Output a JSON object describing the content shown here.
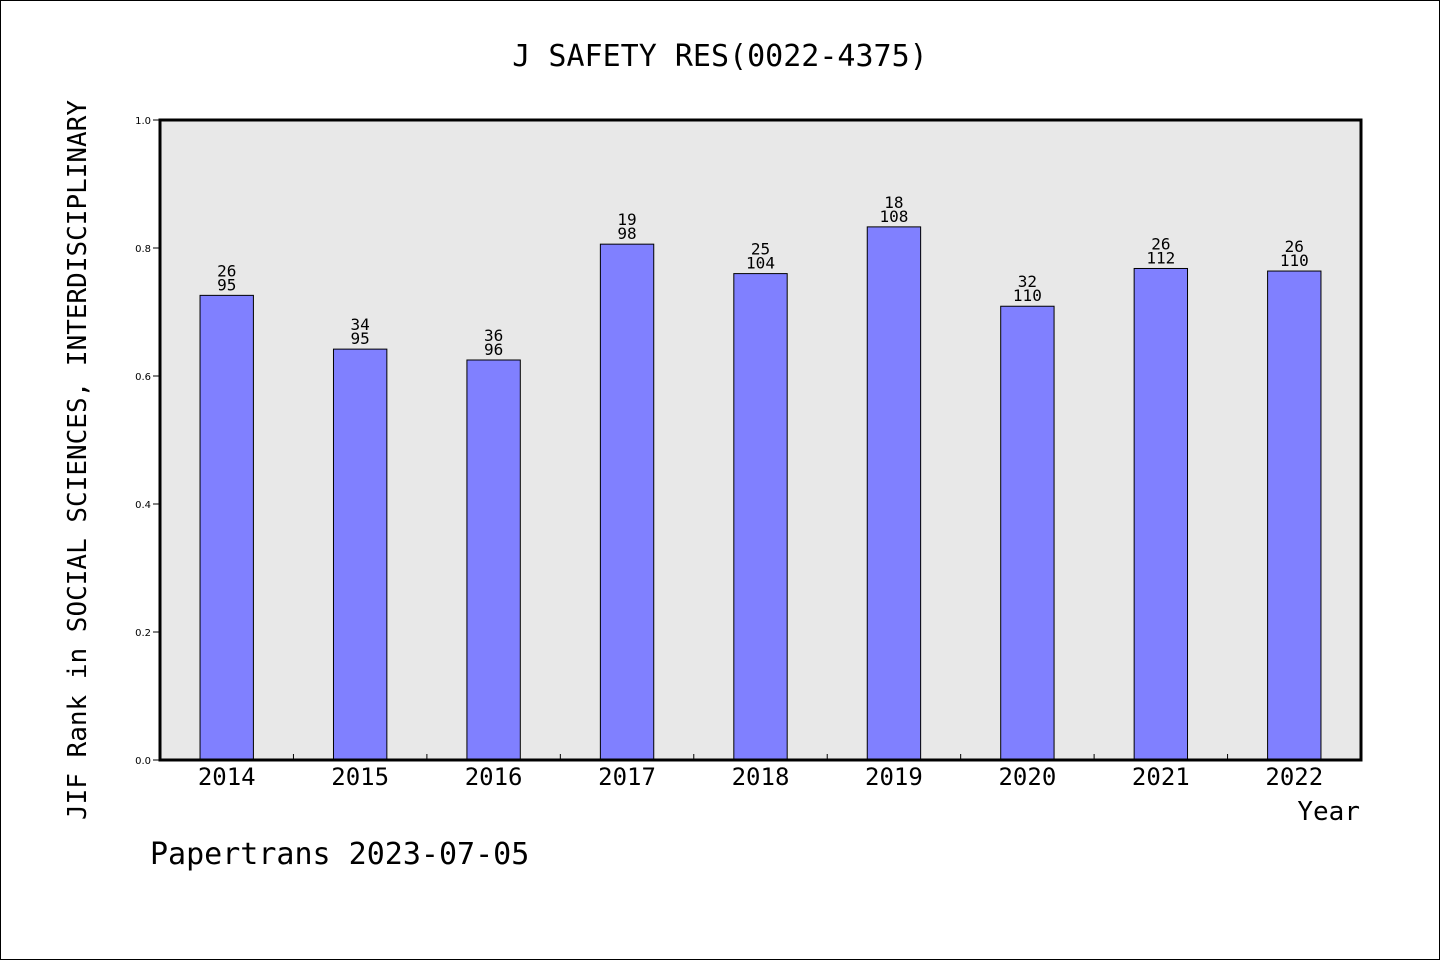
{
  "chart_data": {
    "type": "bar",
    "title": "J SAFETY RES(0022-4375)",
    "xlabel": "Year",
    "ylabel": "JIF Rank in SOCIAL SCIENCES, INTERDISCIPLINARY",
    "categories": [
      "2014",
      "2015",
      "2016",
      "2017",
      "2018",
      "2019",
      "2020",
      "2021",
      "2022"
    ],
    "values": [
      0.726,
      0.642,
      0.625,
      0.806,
      0.76,
      0.833,
      0.709,
      0.768,
      0.764
    ],
    "bar_labels": [
      {
        "rank": "26",
        "total": "95"
      },
      {
        "rank": "34",
        "total": "95"
      },
      {
        "rank": "36",
        "total": "96"
      },
      {
        "rank": "19",
        "total": "98"
      },
      {
        "rank": "25",
        "total": "104"
      },
      {
        "rank": "18",
        "total": "108"
      },
      {
        "rank": "32",
        "total": "110"
      },
      {
        "rank": "26",
        "total": "112"
      },
      {
        "rank": "26",
        "total": "110"
      }
    ],
    "ylim": [
      0,
      1.0
    ],
    "yticks": [
      "0.0",
      "0.2",
      "0.4",
      "0.6",
      "0.8",
      "1.0"
    ],
    "grid": false,
    "colors": {
      "bar": "#8080ff",
      "plot_bg": "#e8e8e8",
      "bar_edge": "#000000"
    }
  },
  "footer": "Papertrans 2023-07-05"
}
